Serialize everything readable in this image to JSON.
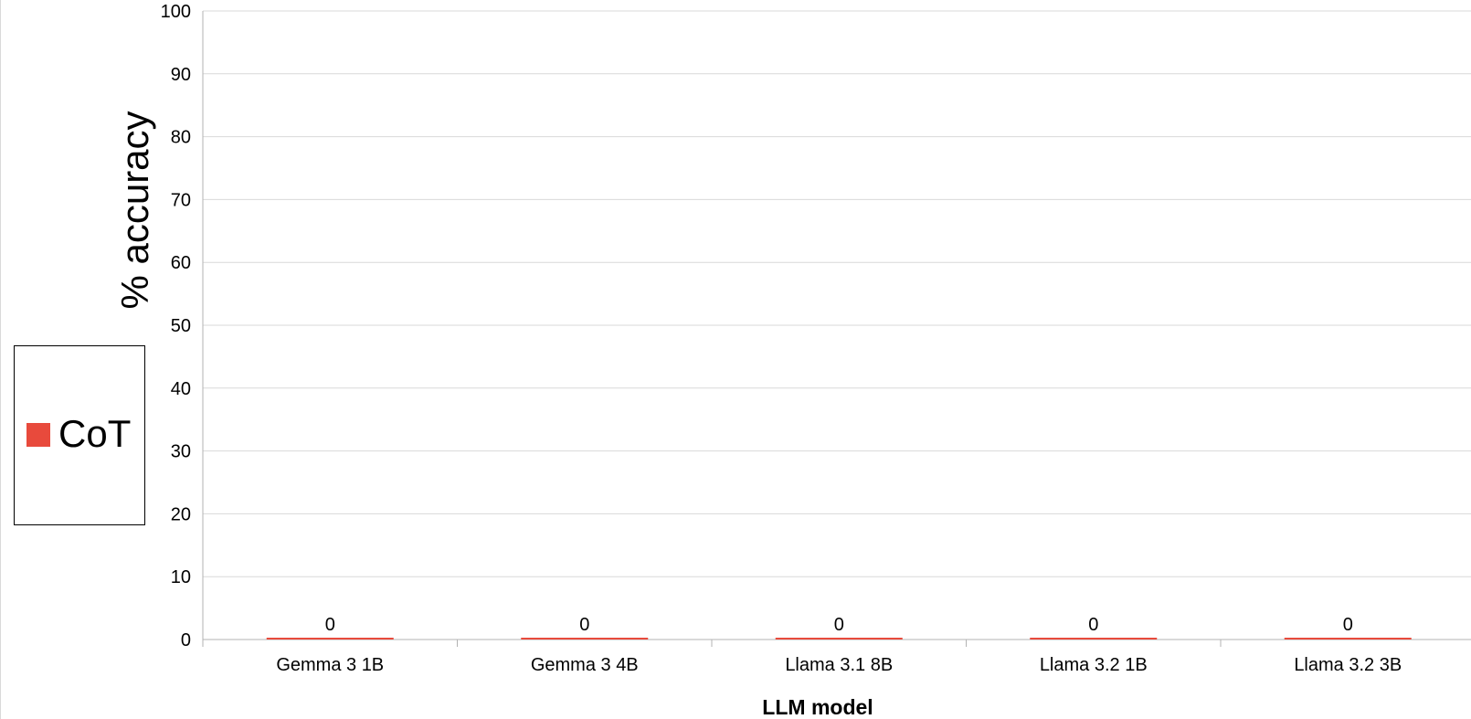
{
  "chart_data": {
    "type": "bar",
    "categories": [
      "Gemma 3 1B",
      "Gemma 3 4B",
      "Llama 3.1 8B",
      "Llama 3.2 1B",
      "Llama 3.2 3B"
    ],
    "series": [
      {
        "name": "CoT",
        "values": [
          0,
          0,
          0,
          0,
          0
        ],
        "color": "#e84a3c"
      }
    ],
    "data_labels": [
      "0",
      "0",
      "0",
      "0",
      "0"
    ],
    "xlabel": "LLM model",
    "ylabel": "% accuracy",
    "ylim": [
      0,
      100
    ],
    "yticks": [
      0,
      10,
      20,
      30,
      40,
      50,
      60,
      70,
      80,
      90,
      100
    ],
    "grid": true,
    "legend": {
      "placement": "left",
      "entries": [
        "CoT"
      ]
    }
  },
  "colors": {
    "grid": "#d9d9d9",
    "axis": "#b3b3b3",
    "text": "#000000"
  }
}
